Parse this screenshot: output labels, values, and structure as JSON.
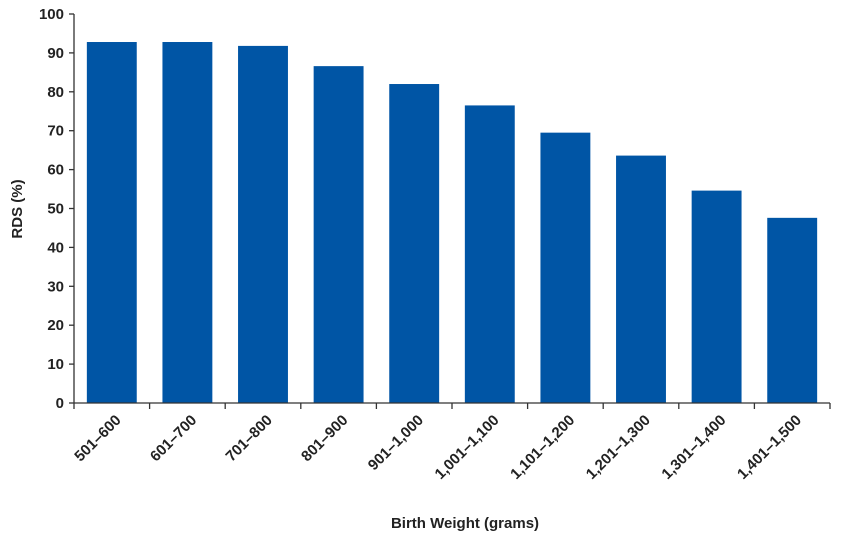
{
  "chart_data": {
    "type": "bar",
    "categories": [
      "501–600",
      "601–700",
      "701–800",
      "801–900",
      "901–1,000",
      "1,001–1,100",
      "1,101–1,200",
      "1,201–1,300",
      "1,301–1,400",
      "1,401–1,500"
    ],
    "values": [
      92.8,
      92.8,
      91.8,
      86.6,
      82.0,
      76.5,
      69.5,
      63.6,
      54.6,
      47.6
    ],
    "xlabel": "Birth Weight (grams)",
    "ylabel": "RDS (%)",
    "ylim": [
      0,
      100
    ],
    "yticks": [
      0,
      10,
      20,
      30,
      40,
      50,
      60,
      70,
      80,
      90,
      100
    ],
    "grid": false,
    "legend": "none",
    "bar_color": "#0055a5"
  }
}
